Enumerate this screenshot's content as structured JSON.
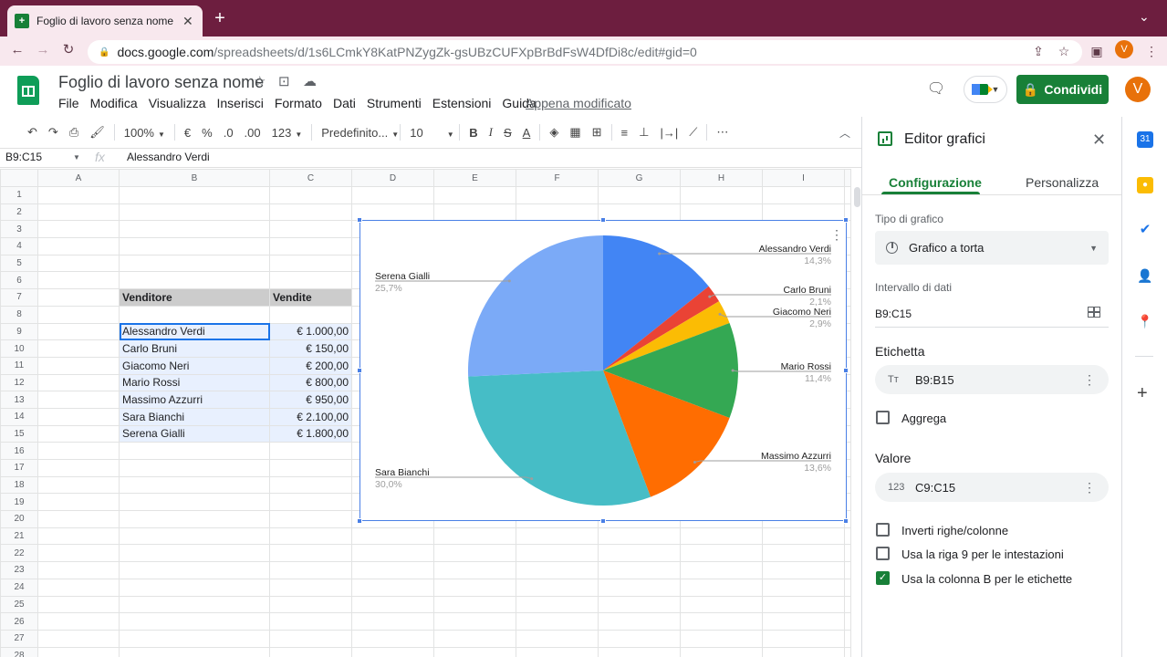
{
  "browser": {
    "tab_title": "Foglio di lavoro senza nome - F",
    "url_host": "docs.google.com",
    "url_path": "/spreadsheets/d/1s6LCmkY8KatPNZygZk-gsUBzCUFXpBrBdFsW4DfDi8c/edit#gid=0",
    "profile_initial": "V"
  },
  "doc": {
    "title": "Foglio di lavoro senza nome",
    "menus": [
      "File",
      "Modifica",
      "Visualizza",
      "Inserisci",
      "Formato",
      "Dati",
      "Strumenti",
      "Estensioni",
      "Guida"
    ],
    "last_edit": "Appena modificato",
    "share_label": "Condividi",
    "avatar_initial": "V"
  },
  "toolbar": {
    "zoom": "100%",
    "currency": "€",
    "percent": "%",
    "dec_less": ".0",
    "dec_more": ".00",
    "format_more": "123",
    "font": "Predefinito...",
    "font_size": "10"
  },
  "formula_bar": {
    "name_box": "B9:C15",
    "fx": "fx",
    "value": "Alessandro Verdi"
  },
  "sheet": {
    "columns": [
      "A",
      "B",
      "C",
      "D",
      "E",
      "F",
      "G",
      "H",
      "I"
    ],
    "row_count": 28,
    "header": {
      "row": 7,
      "b": "Venditore",
      "c": "Vendite"
    },
    "data_rows": [
      {
        "row": 9,
        "b": "Alessandro Verdi",
        "c": "€ 1.000,00"
      },
      {
        "row": 10,
        "b": "Carlo Bruni",
        "c": "€ 150,00"
      },
      {
        "row": 11,
        "b": "Giacomo Neri",
        "c": "€ 200,00"
      },
      {
        "row": 12,
        "b": "Mario Rossi",
        "c": "€ 800,00"
      },
      {
        "row": 13,
        "b": "Massimo Azzurri",
        "c": "€ 950,00"
      },
      {
        "row": 14,
        "b": "Sara Bianchi",
        "c": "€ 2.100,00"
      },
      {
        "row": 15,
        "b": "Serena Gialli",
        "c": "€ 1.800,00"
      }
    ]
  },
  "chart_data": {
    "type": "pie",
    "slices": [
      {
        "label": "Alessandro Verdi",
        "value": 1000,
        "pct": "14,3%",
        "color": "#4285f4"
      },
      {
        "label": "Carlo Bruni",
        "value": 150,
        "pct": "2,1%",
        "color": "#ea4335"
      },
      {
        "label": "Giacomo Neri",
        "value": 200,
        "pct": "2,9%",
        "color": "#fbbc04"
      },
      {
        "label": "Mario Rossi",
        "value": 800,
        "pct": "11,4%",
        "color": "#34a853"
      },
      {
        "label": "Massimo Azzurri",
        "value": 950,
        "pct": "13,6%",
        "color": "#ff6d01"
      },
      {
        "label": "Sara Bianchi",
        "value": 2100,
        "pct": "30,0%",
        "color": "#46bdc6"
      },
      {
        "label": "Serena Gialli",
        "value": 1800,
        "pct": "25,7%",
        "color": "#7baaf7"
      }
    ]
  },
  "panel": {
    "title": "Editor grafici",
    "tab_setup": "Configurazione",
    "tab_customize": "Personalizza",
    "chart_type_label": "Tipo di grafico",
    "chart_type_value": "Grafico a torta",
    "range_label": "Intervallo di dati",
    "range_value": "B9:C15",
    "label_section": "Etichetta",
    "label_chip": "B9:B15",
    "label_chip_icon": "Tт",
    "aggregate": "Aggrega",
    "value_section": "Valore",
    "value_chip": "C9:C15",
    "value_chip_icon": "123",
    "switch_rows_cols": "Inverti righe/colonne",
    "use_row_headers": "Usa la riga 9 per le intestazioni",
    "use_col_labels": "Usa la colonna B per le etichette"
  },
  "colors": {
    "tabbar": "#6d1e3f",
    "sheets_green": "#188038",
    "selection": "#e8f0fe",
    "chart_border": "#4a80e6"
  }
}
